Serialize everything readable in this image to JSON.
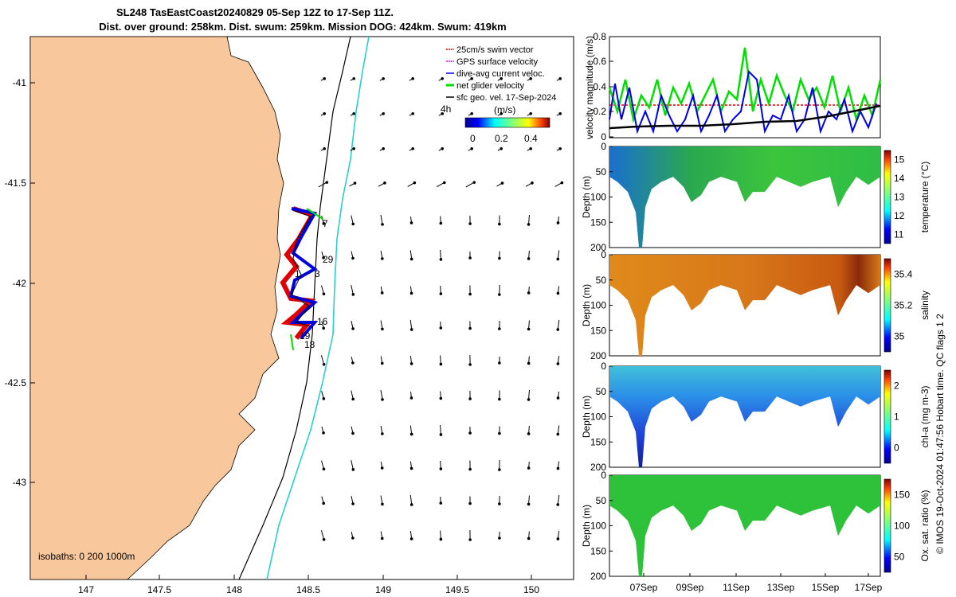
{
  "header": {
    "line1": "SL248 TasEastCoast20240829 05-Sep 12Z to 17-Sep 11Z.",
    "line2": "Dist. over ground: 258km. Dist. swum: 259km. Mission DOG: 424km. Swum: 419km"
  },
  "map": {
    "lon_ticks": [
      "147",
      "147.5",
      "148",
      "148.5",
      "149",
      "149.5",
      "150"
    ],
    "lat_ticks": [
      "-41",
      "-41.5",
      "-42",
      "-42.5",
      "-43"
    ],
    "legend": [
      "25cm/s swim vector",
      "GPS surface velocity",
      "dive-avg current veloc.",
      "net glider velocity",
      "sfc geo. vel. 17-Sep-2024"
    ],
    "interval": "4h",
    "cbar_label": "(m/s)",
    "cbar_ticks": [
      "0",
      "0.2",
      "0.4"
    ],
    "isobaths": "isobaths: 0   200  1000m",
    "day_labels": [
      "7",
      "29",
      "3",
      "16",
      "19",
      "18",
      "1"
    ]
  },
  "chart_data": [
    {
      "type": "line",
      "title": "",
      "ylabel": "velocity magnitude (m/s)",
      "ylim": [
        0,
        0.8
      ],
      "yticks": [
        "0",
        "0.2",
        "0.4",
        "0.6",
        "0.8"
      ],
      "series": [
        {
          "name": "net glider velocity",
          "color": "#00e000"
        },
        {
          "name": "dive-avg current veloc.",
          "color": "#0000e6"
        },
        {
          "name": "sfc geo. vel.",
          "color": "#000000"
        },
        {
          "name": "25cm/s swim vector",
          "color": "#e00000"
        }
      ]
    },
    {
      "type": "heatmap",
      "ylabel": "Depth (m)",
      "cbar_label": "temperature (°C)",
      "cbar_ticks": [
        "11",
        "12",
        "13",
        "14",
        "15"
      ],
      "yticks": [
        "0",
        "50",
        "100",
        "150",
        "200"
      ]
    },
    {
      "type": "heatmap",
      "ylabel": "Depth (m)",
      "cbar_label": "salinity",
      "cbar_ticks": [
        "35",
        "35.2",
        "35.4"
      ],
      "yticks": [
        "0",
        "50",
        "100",
        "150",
        "200"
      ]
    },
    {
      "type": "heatmap",
      "ylabel": "Depth (m)",
      "cbar_label": "chl-a (mg m-3)",
      "cbar_ticks": [
        "0",
        "1",
        "2"
      ],
      "yticks": [
        "0",
        "50",
        "100",
        "150",
        "200"
      ]
    },
    {
      "type": "heatmap",
      "ylabel": "Depth (m)",
      "cbar_label": "Ox. sat. ratio (%)",
      "cbar_ticks": [
        "50",
        "100",
        "150"
      ],
      "yticks": [
        "0",
        "50",
        "100",
        "150",
        "200"
      ],
      "xticks": [
        "07Sep",
        "09Sep",
        "11Sep",
        "13Sep",
        "15Sep",
        "17Sep"
      ]
    }
  ],
  "footer": "© IMOS 19-Oct-2024 01:47:56 Hobart time. QC flags 1  2"
}
